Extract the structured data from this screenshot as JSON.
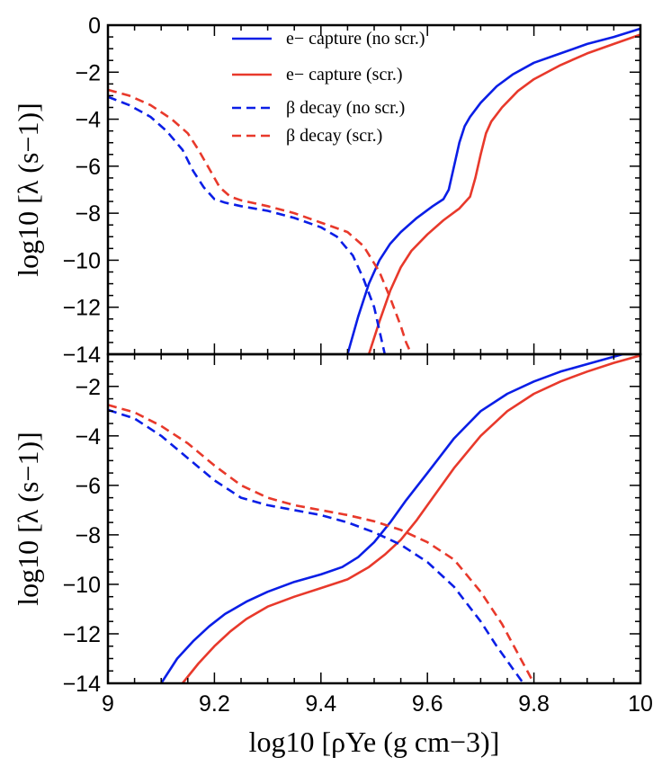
{
  "chart_data": [
    {
      "type": "line",
      "xlabel": "log10 [ρYe (g cm−3)]",
      "ylabel": "log10 [λ (s−1)]",
      "xlim": [
        9.0,
        10.0
      ],
      "ylim": [
        -14,
        0
      ],
      "x_ticks": [
        "9",
        "9.2",
        "9.4",
        "9.6",
        "9.8",
        "10"
      ],
      "y_ticks": [
        "0",
        "−2",
        "−4",
        "−6",
        "−8",
        "−10",
        "−12",
        "−14"
      ],
      "legend": {
        "placement": "top-center"
      },
      "series": [
        {
          "name": "e− capture (no scr.)",
          "color": "#0a1ee6",
          "dash": "solid",
          "x": [
            9.45,
            9.47,
            9.49,
            9.51,
            9.53,
            9.55,
            9.58,
            9.61,
            9.63,
            9.64,
            9.65,
            9.66,
            9.67,
            9.68,
            9.7,
            9.73,
            9.76,
            9.8,
            9.85,
            9.9,
            9.95,
            10.0
          ],
          "y": [
            -14.0,
            -12.4,
            -11.0,
            -10.0,
            -9.3,
            -8.8,
            -8.2,
            -7.7,
            -7.4,
            -7.0,
            -6.0,
            -5.0,
            -4.3,
            -3.9,
            -3.3,
            -2.6,
            -2.1,
            -1.6,
            -1.2,
            -0.8,
            -0.5,
            -0.15
          ]
        },
        {
          "name": "e− capture (scr.)",
          "color": "#e8392b",
          "dash": "solid",
          "x": [
            9.49,
            9.51,
            9.53,
            9.55,
            9.57,
            9.6,
            9.63,
            9.66,
            9.68,
            9.69,
            9.7,
            9.71,
            9.72,
            9.74,
            9.77,
            9.8,
            9.85,
            9.9,
            9.95,
            10.0
          ],
          "y": [
            -14.0,
            -12.6,
            -11.3,
            -10.3,
            -9.6,
            -8.9,
            -8.3,
            -7.8,
            -7.3,
            -6.5,
            -5.5,
            -4.6,
            -4.1,
            -3.5,
            -2.8,
            -2.3,
            -1.7,
            -1.2,
            -0.8,
            -0.4
          ]
        },
        {
          "name": "β decay (no scr.)",
          "color": "#0a1ee6",
          "dash": "dashed",
          "x": [
            9.0,
            9.04,
            9.08,
            9.11,
            9.14,
            9.16,
            9.18,
            9.2,
            9.22,
            9.25,
            9.3,
            9.35,
            9.4,
            9.43,
            9.46,
            9.48,
            9.5,
            9.51,
            9.52
          ],
          "y": [
            -3.05,
            -3.4,
            -3.9,
            -4.5,
            -5.3,
            -6.2,
            -6.9,
            -7.4,
            -7.55,
            -7.7,
            -7.9,
            -8.2,
            -8.6,
            -9.0,
            -9.8,
            -10.8,
            -12.0,
            -13.0,
            -14.0
          ]
        },
        {
          "name": "β decay (scr.)",
          "color": "#e8392b",
          "dash": "dashed",
          "x": [
            9.0,
            9.04,
            9.08,
            9.12,
            9.15,
            9.17,
            9.19,
            9.21,
            9.23,
            9.25,
            9.3,
            9.35,
            9.4,
            9.45,
            9.48,
            9.51,
            9.53,
            9.55,
            9.56,
            9.57
          ],
          "y": [
            -2.75,
            -3.0,
            -3.4,
            -4.0,
            -4.6,
            -5.3,
            -6.1,
            -6.9,
            -7.3,
            -7.45,
            -7.7,
            -8.0,
            -8.4,
            -8.8,
            -9.4,
            -10.5,
            -11.6,
            -12.8,
            -13.5,
            -14.0
          ]
        }
      ]
    },
    {
      "type": "line",
      "xlabel": "log10 [ρYe (g cm−3)]",
      "ylabel": "log10 [λ (s−1)]",
      "xlim": [
        9.0,
        10.0
      ],
      "ylim": [
        -14,
        -0.7
      ],
      "x_ticks": [
        "9",
        "9.2",
        "9.4",
        "9.6",
        "9.8",
        "10"
      ],
      "y_ticks": [
        "−2",
        "−4",
        "−6",
        "−8",
        "−10",
        "−12",
        "−14"
      ],
      "series": [
        {
          "name": "e− capture (no scr.)",
          "color": "#0a1ee6",
          "dash": "solid",
          "x": [
            9.1,
            9.13,
            9.16,
            9.19,
            9.22,
            9.26,
            9.3,
            9.35,
            9.4,
            9.44,
            9.47,
            9.5,
            9.53,
            9.56,
            9.6,
            9.65,
            9.7,
            9.75,
            9.8,
            9.85,
            9.9,
            9.95,
            10.0
          ],
          "y": [
            -14.0,
            -13.0,
            -12.3,
            -11.7,
            -11.2,
            -10.7,
            -10.3,
            -9.9,
            -9.6,
            -9.3,
            -8.9,
            -8.3,
            -7.5,
            -6.6,
            -5.5,
            -4.1,
            -3.0,
            -2.3,
            -1.8,
            -1.4,
            -1.1,
            -0.8,
            -0.5
          ]
        },
        {
          "name": "e− capture (scr.)",
          "color": "#e8392b",
          "dash": "solid",
          "x": [
            9.14,
            9.17,
            9.2,
            9.23,
            9.26,
            9.3,
            9.35,
            9.4,
            9.45,
            9.49,
            9.52,
            9.55,
            9.58,
            9.61,
            9.65,
            9.7,
            9.75,
            9.8,
            9.85,
            9.9,
            9.95,
            10.0
          ],
          "y": [
            -14.0,
            -13.2,
            -12.5,
            -11.9,
            -11.4,
            -10.9,
            -10.5,
            -10.15,
            -9.8,
            -9.3,
            -8.8,
            -8.2,
            -7.4,
            -6.5,
            -5.3,
            -4.0,
            -3.0,
            -2.3,
            -1.8,
            -1.4,
            -1.05,
            -0.75
          ]
        },
        {
          "name": "β decay (no scr.)",
          "color": "#0a1ee6",
          "dash": "dashed",
          "x": [
            9.0,
            9.05,
            9.1,
            9.15,
            9.2,
            9.25,
            9.3,
            9.35,
            9.4,
            9.45,
            9.5,
            9.55,
            9.6,
            9.65,
            9.7,
            9.73,
            9.76,
            9.78
          ],
          "y": [
            -2.95,
            -3.3,
            -4.0,
            -4.9,
            -5.8,
            -6.5,
            -6.8,
            -7.0,
            -7.2,
            -7.5,
            -7.9,
            -8.4,
            -9.1,
            -10.1,
            -11.5,
            -12.5,
            -13.4,
            -14.0
          ]
        },
        {
          "name": "β decay (scr.)",
          "color": "#e8392b",
          "dash": "dashed",
          "x": [
            9.0,
            9.05,
            9.1,
            9.15,
            9.2,
            9.25,
            9.3,
            9.35,
            9.4,
            9.45,
            9.5,
            9.55,
            9.6,
            9.65,
            9.7,
            9.74,
            9.77,
            9.8
          ],
          "y": [
            -2.75,
            -3.05,
            -3.6,
            -4.3,
            -5.2,
            -6.0,
            -6.5,
            -6.8,
            -7.0,
            -7.2,
            -7.45,
            -7.8,
            -8.3,
            -9.0,
            -10.3,
            -11.6,
            -12.8,
            -14.0
          ]
        }
      ]
    }
  ]
}
